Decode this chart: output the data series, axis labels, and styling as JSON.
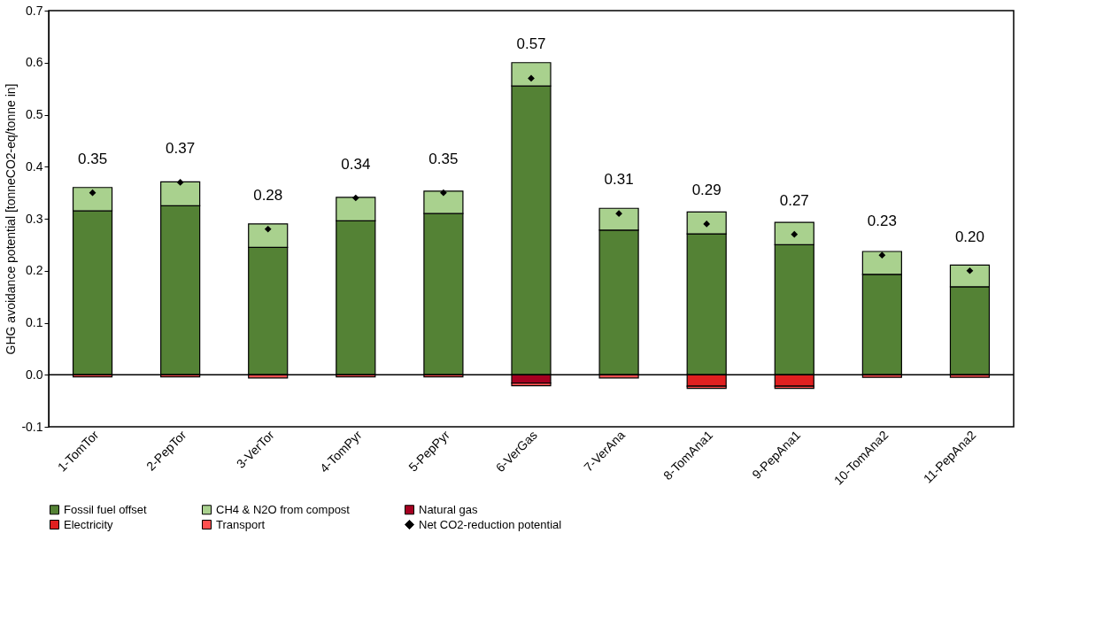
{
  "chart_data": {
    "type": "bar",
    "stacked": true,
    "ylabel": "GHG avoidance potential [tonneCO2-eq/tonne in]",
    "categories": [
      "1-TomTor",
      "2-PepTor",
      "3-VerTor",
      "4-TomPyr",
      "5-PepPyr",
      "6-VerGas",
      "7-VerAna",
      "8-TomAna1",
      "9-PepAna1",
      "10-TomAna2",
      "11-PepAna2"
    ],
    "series": [
      {
        "name": "Fossil fuel offset",
        "color": "#548235",
        "values": [
          0.315,
          0.325,
          0.245,
          0.296,
          0.31,
          0.555,
          0.278,
          0.271,
          0.25,
          0.193,
          0.169
        ]
      },
      {
        "name": "CH4 & N2O from compost",
        "color": "#a9d18e",
        "values": [
          0.045,
          0.046,
          0.045,
          0.045,
          0.043,
          0.045,
          0.042,
          0.042,
          0.043,
          0.044,
          0.042
        ]
      },
      {
        "name": "Natural gas",
        "color": "#a50021",
        "values": [
          null,
          null,
          null,
          null,
          null,
          -0.016,
          null,
          null,
          null,
          null,
          null
        ]
      },
      {
        "name": "Electricity",
        "color": "#e02020",
        "values": [
          null,
          null,
          null,
          null,
          null,
          null,
          null,
          -0.022,
          -0.022,
          null,
          null
        ]
      },
      {
        "name": "Transport",
        "color": "#ff5050",
        "values": [
          -0.004,
          -0.004,
          -0.006,
          -0.004,
          -0.004,
          -0.005,
          -0.006,
          -0.004,
          -0.004,
          -0.005,
          -0.005
        ]
      },
      {
        "name": "Net CO2-reduction potential",
        "type": "scatter",
        "marker": "diamond",
        "color": "#000000",
        "values": [
          0.35,
          0.37,
          0.28,
          0.34,
          0.35,
          0.57,
          0.31,
          0.29,
          0.27,
          0.23,
          0.2
        ],
        "value_labels": [
          "0.35",
          "0.37",
          "0.28",
          "0.34",
          "0.35",
          "0.57",
          "0.31",
          "0.29",
          "0.27",
          "0.23",
          "0.20"
        ]
      }
    ],
    "ylim": [
      -0.1,
      0.7
    ],
    "yticks": [
      {
        "value": -0.1,
        "label": "-0.1"
      },
      {
        "value": 0,
        "label": "0.0"
      },
      {
        "value": 0.1,
        "label": "0.1"
      },
      {
        "value": 0.2,
        "label": "0.2"
      },
      {
        "value": 0.3,
        "label": "0.3"
      },
      {
        "value": 0.4,
        "label": "0.4"
      },
      {
        "value": 0.5,
        "label": "0.5"
      },
      {
        "value": 0.6,
        "label": "0.6"
      },
      {
        "value": 0.7,
        "label": "0.7"
      }
    ],
    "ref_lines": [
      {
        "axis": "y",
        "value": 0,
        "color": "#000000"
      }
    ],
    "legend": "bottom",
    "grid": false
  }
}
